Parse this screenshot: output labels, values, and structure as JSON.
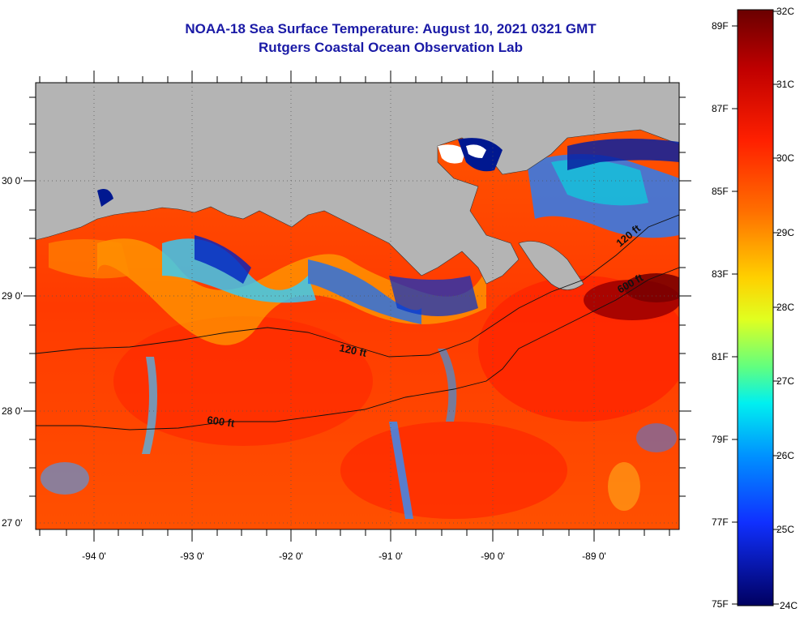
{
  "title": "NOAA-18 Sea Surface Temperature:  August 10, 2021 0321 GMT",
  "subtitle": "Rutgers Coastal Ocean Observation Lab",
  "map": {
    "lon_labels": [
      "-94 0'",
      "-93 0'",
      "-92 0'",
      "-91 0'",
      "-90 0'",
      "-89 0'"
    ],
    "lat_labels": [
      "30 0'",
      "29 0'",
      "28 0'",
      "27 0'"
    ],
    "contours": [
      {
        "label": "120 ft"
      },
      {
        "label": "600 ft"
      },
      {
        "label": "120 ft"
      },
      {
        "label": "600 ft"
      }
    ],
    "land_color": "#b4b4b4"
  },
  "colorbar": {
    "fahrenheit": [
      "89F",
      "87F",
      "85F",
      "83F",
      "81F",
      "79F",
      "77F",
      "75F"
    ],
    "celsius": [
      "32C",
      "31C",
      "30C",
      "29C",
      "28C",
      "27C",
      "26C",
      "25C",
      "24C"
    ],
    "colors": [
      "#7a0000",
      "#ff2000",
      "#ff8000",
      "#ffe000",
      "#80ff60",
      "#00e0ff",
      "#1060ff",
      "#0000d0",
      "#000070"
    ]
  }
}
